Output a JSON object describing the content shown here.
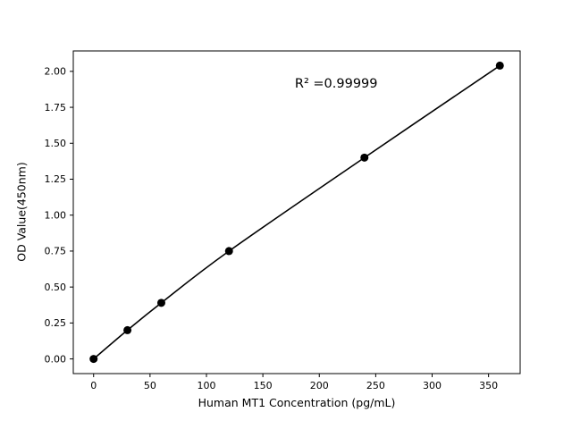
{
  "figure": {
    "background": "#ffffff"
  },
  "chart_data": {
    "type": "scatter",
    "title": "",
    "xlabel": "Human MT1 Concentration (pg/mL)",
    "ylabel": "OD Value(450nm)",
    "x": [
      0,
      30,
      60,
      120,
      240,
      360
    ],
    "y": [
      0.0,
      0.2,
      0.39,
      0.75,
      1.4,
      2.04
    ],
    "xticks": [
      0,
      50,
      100,
      150,
      200,
      250,
      300,
      350
    ],
    "yticks": [
      0.0,
      0.25,
      0.5,
      0.75,
      1.0,
      1.25,
      1.5,
      1.75,
      2.0
    ],
    "ytick_decimals": 2,
    "xlim": [
      -18,
      378
    ],
    "ylim": [
      -0.102,
      2.142
    ],
    "grid": false,
    "legend": "none",
    "fit_line": true,
    "line_color": "#000000",
    "marker_color": "#000000",
    "axis_color": "#000000",
    "annotation": {
      "text": "R² =0.99999",
      "x": 215,
      "y": 1.91
    }
  }
}
